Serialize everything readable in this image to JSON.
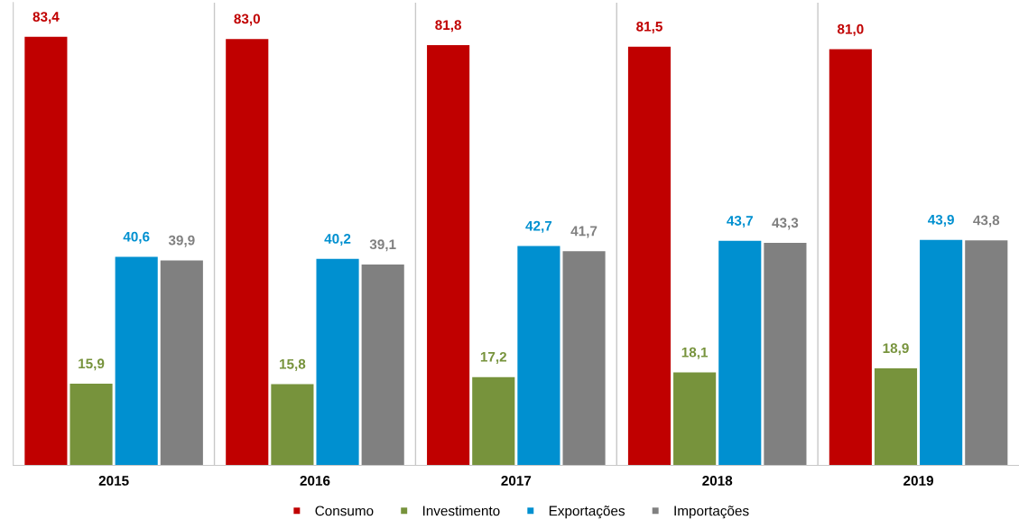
{
  "chart_data": {
    "type": "bar",
    "categories": [
      "2015",
      "2016",
      "2017",
      "2018",
      "2019"
    ],
    "series": [
      {
        "name": "Consumo",
        "color": "#c00000",
        "values": [
          83.4,
          83.0,
          81.8,
          81.5,
          81.0
        ],
        "value_labels": [
          "83,4",
          "83,0",
          "81,8",
          "81,5",
          "81,0"
        ]
      },
      {
        "name": "Investimento",
        "color": "#77933c",
        "values": [
          15.9,
          15.8,
          17.2,
          18.1,
          18.9
        ],
        "value_labels": [
          "15,9",
          "15,8",
          "17,2",
          "18,1",
          "18,9"
        ]
      },
      {
        "name": "Exportações",
        "color": "#0090d0",
        "values": [
          40.6,
          40.2,
          42.7,
          43.7,
          43.9
        ],
        "value_labels": [
          "40,6",
          "40,2",
          "42,7",
          "43,7",
          "43,9"
        ]
      },
      {
        "name": "Importações",
        "color": "#808080",
        "values": [
          39.9,
          39.1,
          41.7,
          43.3,
          43.8
        ],
        "value_labels": [
          "39,9",
          "39,1",
          "41,7",
          "43,3",
          "43,8"
        ]
      }
    ],
    "legend": "bottom",
    "grid": false
  }
}
